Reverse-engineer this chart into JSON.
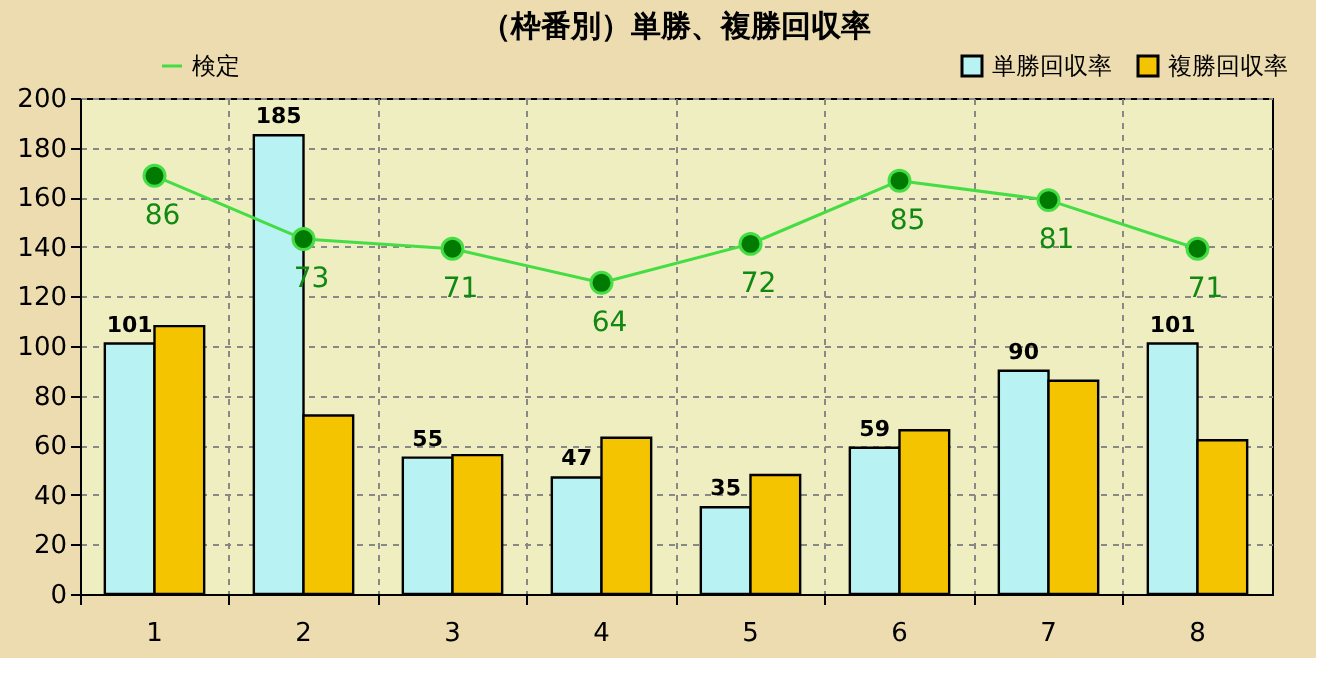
{
  "chart_data": {
    "type": "bar",
    "title": "（枠番別）単勝、複勝回収率",
    "categories": [
      "1",
      "2",
      "3",
      "4",
      "5",
      "6",
      "7",
      "8"
    ],
    "series": [
      {
        "name": "単勝回収率",
        "color": "#b8f2f2",
        "values": [
          101,
          185,
          55,
          47,
          35,
          59,
          90,
          101
        ],
        "value_labels": [
          "101",
          "185",
          "55",
          "47",
          "35",
          "59",
          "90",
          "101"
        ]
      },
      {
        "name": "複勝回収率",
        "color": "#f5c400",
        "values": [
          108,
          72,
          56,
          63,
          48,
          66,
          86,
          62
        ]
      },
      {
        "name": "検定",
        "type": "line",
        "axis": "y2",
        "color": "#44dd44",
        "marker": "circle",
        "values": [
          86,
          73,
          71,
          64,
          72,
          85,
          81,
          71
        ],
        "value_labels": [
          "86",
          "73",
          "71",
          "64",
          "72",
          "85",
          "81",
          "71"
        ]
      }
    ],
    "ylim": [
      0,
      200
    ],
    "yticks": [
      0,
      20,
      40,
      60,
      80,
      100,
      120,
      140,
      160,
      180,
      200
    ],
    "y2lim": [
      0,
      102
    ],
    "grid": true,
    "legend": "top"
  }
}
